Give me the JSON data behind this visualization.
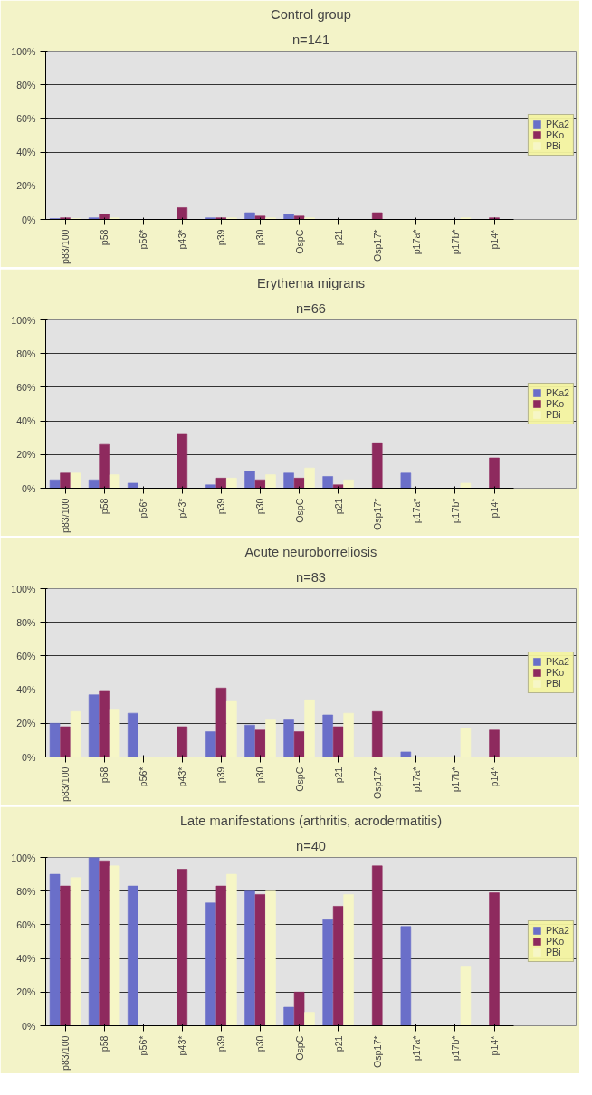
{
  "chart_data": [
    {
      "type": "bar",
      "title": "Control group",
      "subtitle": "n=141",
      "categories": [
        "p83/100",
        "p58",
        "p56*",
        "p43*",
        "p39",
        "p30",
        "OspC",
        "p21",
        "Osp17*",
        "p17a*",
        "p17b*",
        "p14*"
      ],
      "ylim": [
        0,
        100
      ],
      "yticks": [
        {
          "value": 0,
          "label": "0%"
        },
        {
          "value": 20,
          "label": "20%"
        },
        {
          "value": 40,
          "label": "40%"
        },
        {
          "value": 60,
          "label": "60%"
        },
        {
          "value": 80,
          "label": "80%"
        },
        {
          "value": 100,
          "label": "100%"
        }
      ],
      "grid": "y",
      "legend": "right",
      "series": [
        {
          "name": "PKa2",
          "color": "#6a6fc9",
          "values": [
            0.5,
            1,
            0,
            null,
            1,
            4,
            3,
            0,
            null,
            0,
            null,
            null
          ]
        },
        {
          "name": "PKo",
          "color": "#8e2a5e",
          "values": [
            1,
            3,
            null,
            7,
            1,
            2,
            2,
            0,
            4,
            null,
            null,
            1
          ]
        },
        {
          "name": "PBi",
          "color": "#f6f6c6",
          "values": [
            0.5,
            1,
            null,
            null,
            1,
            1,
            1,
            0,
            null,
            null,
            1,
            null
          ]
        }
      ]
    },
    {
      "type": "bar",
      "title": "Erythema migrans",
      "subtitle": "n=66",
      "categories": [
        "p83/100",
        "p58",
        "p56*",
        "p43*",
        "p39",
        "p30",
        "OspC",
        "p21",
        "Osp17*",
        "p17a*",
        "p17b*",
        "p14*"
      ],
      "ylim": [
        0,
        100
      ],
      "yticks": [
        {
          "value": 0,
          "label": "0%"
        },
        {
          "value": 20,
          "label": "20%"
        },
        {
          "value": 40,
          "label": "40%"
        },
        {
          "value": 60,
          "label": "60%"
        },
        {
          "value": 80,
          "label": "80%"
        },
        {
          "value": 100,
          "label": "100%"
        }
      ],
      "grid": "y",
      "legend": "right",
      "series": [
        {
          "name": "PKa2",
          "color": "#6a6fc9",
          "values": [
            5,
            5,
            3,
            null,
            2,
            10,
            9,
            7,
            null,
            9,
            null,
            null
          ]
        },
        {
          "name": "PKo",
          "color": "#8e2a5e",
          "values": [
            9,
            26,
            null,
            32,
            6,
            5,
            6,
            2,
            27,
            null,
            null,
            18
          ]
        },
        {
          "name": "PBi",
          "color": "#f6f6c6",
          "values": [
            9,
            8,
            null,
            null,
            6,
            8,
            12,
            5,
            null,
            null,
            3,
            null
          ]
        }
      ]
    },
    {
      "type": "bar",
      "title": "Acute neuroborreliosis",
      "subtitle": "n=83",
      "categories": [
        "p83/100",
        "p58",
        "p56*",
        "p43*",
        "p39",
        "p30",
        "OspC",
        "p21",
        "Osp17*",
        "p17a*",
        "p17b*",
        "p14*"
      ],
      "ylim": [
        0,
        100
      ],
      "yticks": [
        {
          "value": 0,
          "label": "0%"
        },
        {
          "value": 20,
          "label": "20%"
        },
        {
          "value": 40,
          "label": "40%"
        },
        {
          "value": 60,
          "label": "60%"
        },
        {
          "value": 80,
          "label": "80%"
        },
        {
          "value": 100,
          "label": "100%"
        }
      ],
      "grid": "y",
      "legend": "right",
      "series": [
        {
          "name": "PKa2",
          "color": "#6a6fc9",
          "values": [
            20,
            37,
            26,
            null,
            15,
            19,
            22,
            25,
            null,
            3,
            null,
            null
          ]
        },
        {
          "name": "PKo",
          "color": "#8e2a5e",
          "values": [
            18,
            39,
            null,
            18,
            41,
            16,
            15,
            18,
            27,
            null,
            null,
            16
          ]
        },
        {
          "name": "PBi",
          "color": "#f6f6c6",
          "values": [
            27,
            28,
            null,
            null,
            33,
            22,
            34,
            26,
            null,
            null,
            17,
            null
          ]
        }
      ]
    },
    {
      "type": "bar",
      "title": "Late manifestations (arthritis, acrodermatitis)",
      "subtitle": "n=40",
      "categories": [
        "p83/100",
        "p58",
        "p56*",
        "p43*",
        "p39",
        "p30",
        "OspC",
        "p21",
        "Osp17*",
        "p17a*",
        "p17b*",
        "p14*"
      ],
      "ylim": [
        0,
        100
      ],
      "yticks": [
        {
          "value": 0,
          "label": "0%"
        },
        {
          "value": 20,
          "label": "20%"
        },
        {
          "value": 40,
          "label": "40%"
        },
        {
          "value": 60,
          "label": "60%"
        },
        {
          "value": 80,
          "label": "80%"
        },
        {
          "value": 100,
          "label": "100%"
        }
      ],
      "grid": "y",
      "legend": "right",
      "series": [
        {
          "name": "PKa2",
          "color": "#6a6fc9",
          "values": [
            90,
            100,
            83,
            null,
            73,
            80,
            11,
            63,
            null,
            59,
            null,
            null
          ]
        },
        {
          "name": "PKo",
          "color": "#8e2a5e",
          "values": [
            83,
            98,
            null,
            93,
            83,
            78,
            20,
            71,
            95,
            null,
            null,
            79
          ]
        },
        {
          "name": "PBi",
          "color": "#f6f6c6",
          "values": [
            88,
            95,
            null,
            null,
            90,
            80,
            8,
            78,
            null,
            null,
            35,
            null
          ]
        }
      ]
    }
  ]
}
